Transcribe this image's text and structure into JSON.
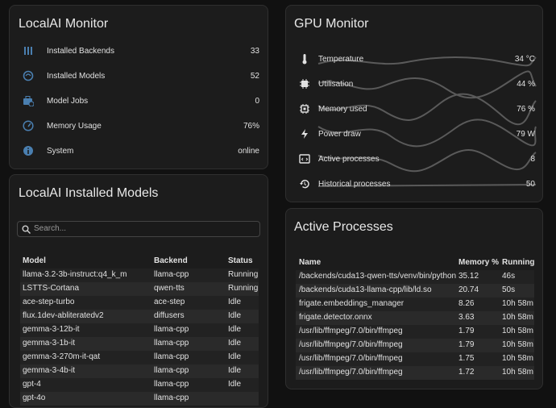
{
  "localai_monitor": {
    "title": "LocalAI Monitor",
    "rows": [
      {
        "label": "Installed Backends",
        "value": 33
      },
      {
        "label": "Installed Models",
        "value": 52
      },
      {
        "label": "Model Jobs",
        "value": 0
      },
      {
        "label": "Memory Usage",
        "value": "76%"
      },
      {
        "label": "System",
        "value": "online"
      }
    ]
  },
  "installed_models": {
    "title": "LocalAI Installed Models",
    "search_placeholder": "Search...",
    "columns": [
      "Model",
      "Backend",
      "Status"
    ],
    "rows": [
      [
        "llama-3.2-3b-instruct:q4_k_m",
        "llama-cpp",
        "Running"
      ],
      [
        "LSTTS-Cortana",
        "qwen-tts",
        "Running"
      ],
      [
        "ace-step-turbo",
        "ace-step",
        "Idle"
      ],
      [
        "flux.1dev-abliteratedv2",
        "diffusers",
        "Idle"
      ],
      [
        "gemma-3-12b-it",
        "llama-cpp",
        "Idle"
      ],
      [
        "gemma-3-1b-it",
        "llama-cpp",
        "Idle"
      ],
      [
        "gemma-3-270m-it-qat",
        "llama-cpp",
        "Idle"
      ],
      [
        "gemma-3-4b-it",
        "llama-cpp",
        "Idle"
      ],
      [
        "gpt-4",
        "llama-cpp",
        "Idle"
      ],
      [
        "gpt-4o",
        "llama-cpp"
      ]
    ]
  },
  "gpu_monitor": {
    "title": "GPU Monitor",
    "rows": [
      {
        "label": "Temperature",
        "value": "34 °C"
      },
      {
        "label": "Utilisation",
        "value": "44 %"
      },
      {
        "label": "Memory used",
        "value": "76 %"
      },
      {
        "label": "Power draw",
        "value": "79 W"
      },
      {
        "label": "Active processes",
        "value": 8
      },
      {
        "label": "Historical processes",
        "value": 50
      }
    ]
  },
  "active_processes": {
    "title": "Active Processes",
    "columns": [
      "Name",
      "Memory %",
      "Running"
    ],
    "rows": [
      [
        "/backends/cuda13-qwen-tts/venv/bin/python",
        35.12,
        "46s"
      ],
      [
        "/backends/cuda13-llama-cpp/lib/ld.so",
        20.74,
        "50s"
      ],
      [
        "frigate.embeddings_manager",
        8.26,
        "10h 58m"
      ],
      [
        "frigate.detector.onnx",
        3.63,
        "10h 58m"
      ],
      [
        "/usr/lib/ffmpeg/7.0/bin/ffmpeg",
        1.79,
        "10h 58m"
      ],
      [
        "/usr/lib/ffmpeg/7.0/bin/ffmpeg",
        1.79,
        "10h 58m"
      ],
      [
        "/usr/lib/ffmpeg/7.0/bin/ffmpeg",
        1.75,
        "10h 58m"
      ],
      [
        "/usr/lib/ffmpeg/7.0/bin/ffmpeg",
        1.72,
        "10h 58m"
      ]
    ]
  }
}
